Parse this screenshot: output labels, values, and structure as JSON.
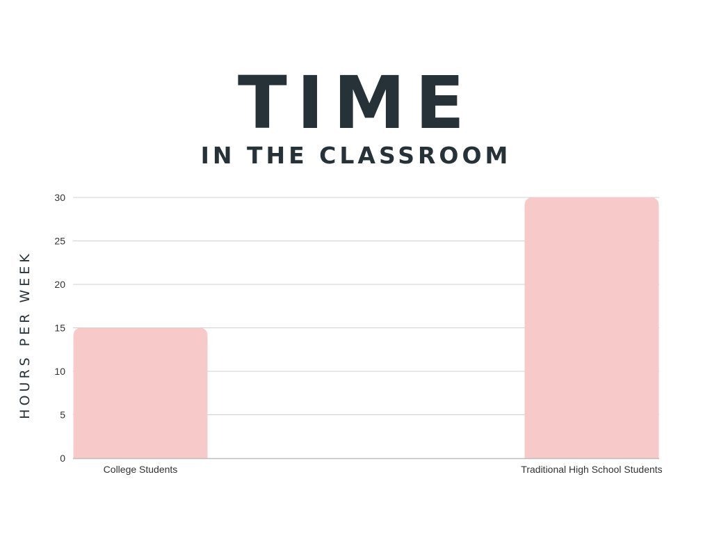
{
  "chart_data": {
    "type": "bar",
    "title": "TIME",
    "subtitle": "IN THE CLASSROOM",
    "ylabel": "HOURS PER WEEK",
    "xlabel": "",
    "categories": [
      "College Students",
      "Traditional High School Students"
    ],
    "values": [
      15,
      30
    ],
    "ylim": [
      0,
      30
    ],
    "yticks": [
      0,
      5,
      10,
      15,
      20,
      25,
      30
    ],
    "grid": true,
    "colors": {
      "bar": "#f7c9c9",
      "grid": "#d0d0d0",
      "axis": "#bdbdbd",
      "title": "#263238"
    }
  }
}
